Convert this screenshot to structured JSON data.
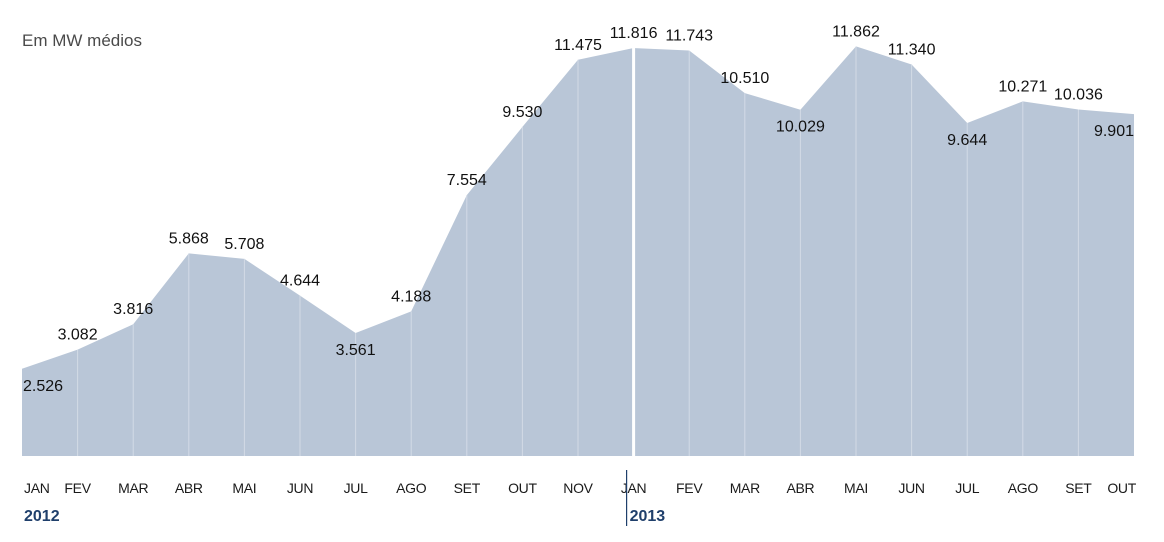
{
  "unit_label": "Em MW médios",
  "colors": {
    "area_fill": "#b9c6d7",
    "gridline": "#d3dbe6",
    "year_divider": "#ffffff",
    "year_label": "#1f3f6b"
  },
  "chart_data": {
    "type": "area",
    "title": "",
    "ylabel": "Em MW médios",
    "xlabel": "",
    "ylim": [
      0,
      12500
    ],
    "grid": true,
    "legend": "none",
    "years": [
      {
        "label": "2012",
        "start_index": 0
      },
      {
        "label": "2013",
        "start_index": 11
      }
    ],
    "categories": [
      "JAN",
      "FEV",
      "MAR",
      "ABR",
      "MAI",
      "JUN",
      "JUL",
      "AGO",
      "SET",
      "OUT",
      "NOV",
      "JAN",
      "FEV",
      "MAR",
      "ABR",
      "MAI",
      "JUN",
      "JUL",
      "AGO",
      "SET",
      "OUT"
    ],
    "values": [
      2526,
      3082,
      3816,
      5868,
      5708,
      4644,
      3561,
      4188,
      7554,
      9530,
      11475,
      11816,
      11743,
      10510,
      10029,
      11862,
      11340,
      9644,
      10271,
      10036,
      9901
    ],
    "labels": [
      "2.526",
      "3.082",
      "3.816",
      "5.868",
      "5.708",
      "4.644",
      "3.561",
      "4.188",
      "7.554",
      "9.530",
      "11.475",
      "11.816",
      "11.743",
      "10.510",
      "10.029",
      "11.862",
      "11.340",
      "9.644",
      "10.271",
      "10.036",
      "9.901"
    ]
  }
}
